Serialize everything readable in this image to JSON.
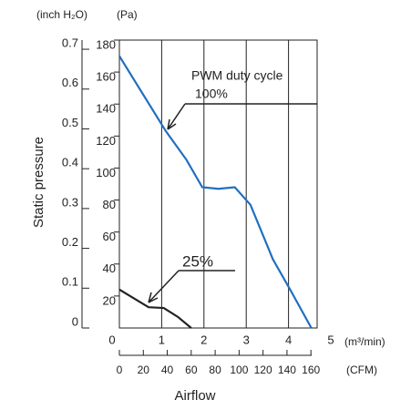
{
  "chart_data": {
    "type": "line",
    "annotation": "PWM duty cycle",
    "xlabel": "Airflow",
    "ylabel": "Static pressure",
    "y_unit": "(Pa)",
    "y2_unit": "(inch H₂O)",
    "x_unit": "(m³/min)",
    "x2_unit": "(CFM)",
    "xlim": [
      0,
      5
    ],
    "xticks": [
      0,
      1,
      2,
      3,
      4,
      5
    ],
    "x2lim": [
      0,
      176.6
    ],
    "x2ticks": [
      0,
      20,
      40,
      60,
      80,
      100,
      120,
      140,
      160
    ],
    "ylim": [
      0,
      180
    ],
    "yticks": [
      20,
      40,
      60,
      80,
      100,
      120,
      140,
      160,
      180
    ],
    "y2lim": [
      0,
      0.723
    ],
    "y2ticks": [
      0,
      0.1,
      0.2,
      0.3,
      0.4,
      0.5,
      0.6,
      0.7
    ],
    "grid": true,
    "series": [
      {
        "name": "100%",
        "color": "#1f6fc0",
        "x": [
          0,
          1.1,
          1.59,
          1.96,
          2.34,
          2.73,
          3.1,
          3.63,
          4.06,
          4.54
        ],
        "values": [
          170,
          123,
          105,
          88,
          87,
          88,
          77,
          43,
          23,
          0
        ]
      },
      {
        "name": "25%",
        "color": "#222222",
        "x": [
          0,
          0.69,
          1.05,
          1.38,
          1.7
        ],
        "values": [
          24,
          13,
          12.5,
          7,
          0
        ]
      }
    ]
  }
}
